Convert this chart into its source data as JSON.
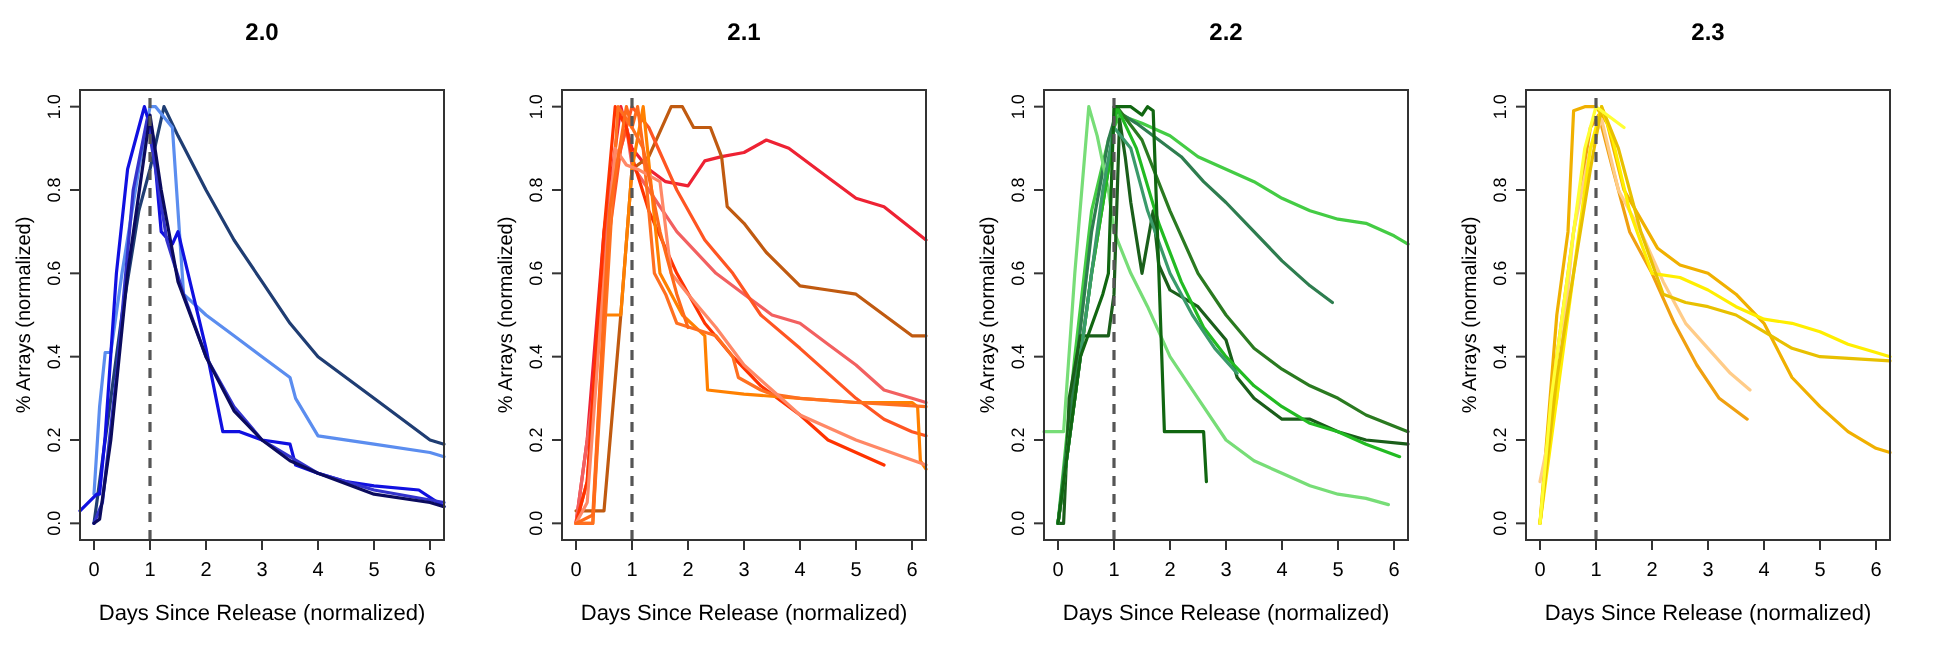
{
  "chart_data": [
    {
      "type": "line",
      "title": "2.0",
      "xlabel": "Days Since Release (normalized)",
      "ylabel": "% Arrays (normalized)",
      "xlim": [
        -0.25,
        6.25
      ],
      "ylim": [
        -0.04,
        1.04
      ],
      "xticks": [
        0,
        1,
        2,
        3,
        4,
        5,
        6
      ],
      "yticks": [
        {
          "value": 0,
          "label": "0.0"
        },
        {
          "value": 0.2,
          "label": "0.2"
        },
        {
          "value": 0.4,
          "label": "0.4"
        },
        {
          "value": 0.6,
          "label": "0.6"
        },
        {
          "value": 0.8,
          "label": "0.8"
        },
        {
          "value": 1,
          "label": "1.0"
        }
      ],
      "ref_lines": [
        {
          "axis": "x",
          "value": 1,
          "color": "#555555",
          "line_style": "dashed"
        }
      ],
      "series": [
        {
          "color": "#1f3d73",
          "x": [
            0,
            0.2,
            0.5,
            0.8,
            1.0,
            1.25,
            1.5,
            2,
            2.5,
            3,
            3.5,
            4,
            5,
            6,
            6.25
          ],
          "values": [
            0,
            0.2,
            0.5,
            0.75,
            0.85,
            1.0,
            0.93,
            0.8,
            0.68,
            0.58,
            0.48,
            0.4,
            0.3,
            0.2,
            0.19
          ]
        },
        {
          "color": "#5b8def",
          "x": [
            0,
            0.1,
            0.2,
            0.3,
            0.5,
            0.8,
            1.0,
            1.1,
            1.4,
            1.6,
            2,
            2.5,
            3,
            3.5,
            3.6,
            4,
            5,
            6,
            6.25
          ],
          "values": [
            0.07,
            0.28,
            0.41,
            0.41,
            0.6,
            0.85,
            1.0,
            1.0,
            0.95,
            0.55,
            0.5,
            0.45,
            0.4,
            0.35,
            0.3,
            0.21,
            0.19,
            0.17,
            0.16
          ]
        },
        {
          "color": "#1010e0",
          "x": [
            -0.25,
            0.05,
            0.1,
            0.2,
            0.4,
            0.6,
            0.8,
            0.9,
            1.05,
            1.2,
            1.4,
            1.5,
            2,
            2.3,
            2.6,
            3,
            3.5,
            3.6,
            4,
            4.5,
            5,
            5.8,
            6.25
          ],
          "values": [
            0.03,
            0.07,
            0.07,
            0.21,
            0.6,
            0.85,
            0.95,
            1.0,
            0.93,
            0.7,
            0.67,
            0.7,
            0.42,
            0.22,
            0.22,
            0.2,
            0.19,
            0.14,
            0.12,
            0.1,
            0.09,
            0.08,
            0.04
          ]
        },
        {
          "color": "#3333cc",
          "x": [
            0,
            0.15,
            0.4,
            0.7,
            0.95,
            1.1,
            1.3,
            1.6,
            2,
            2.5,
            3,
            4,
            5,
            6.25
          ],
          "values": [
            0,
            0.05,
            0.35,
            0.8,
            0.97,
            0.85,
            0.68,
            0.55,
            0.4,
            0.28,
            0.2,
            0.12,
            0.08,
            0.05
          ]
        },
        {
          "color": "#0b0b5e",
          "x": [
            0,
            0.1,
            0.3,
            0.6,
            1.0,
            1.2,
            1.5,
            2,
            2.5,
            3,
            3.5,
            4,
            5,
            6,
            6.25
          ],
          "values": [
            0,
            0.01,
            0.2,
            0.6,
            0.98,
            0.8,
            0.58,
            0.4,
            0.27,
            0.2,
            0.15,
            0.12,
            0.07,
            0.05,
            0.04
          ]
        }
      ]
    },
    {
      "type": "line",
      "title": "2.1",
      "xlabel": "Days Since Release (normalized)",
      "ylabel": "% Arrays (normalized)",
      "xlim": [
        -0.25,
        6.25
      ],
      "ylim": [
        -0.04,
        1.04
      ],
      "xticks": [
        0,
        1,
        2,
        3,
        4,
        5,
        6
      ],
      "yticks": [
        {
          "value": 0,
          "label": "0.0"
        },
        {
          "value": 0.2,
          "label": "0.2"
        },
        {
          "value": 0.4,
          "label": "0.4"
        },
        {
          "value": 0.6,
          "label": "0.6"
        },
        {
          "value": 0.8,
          "label": "0.8"
        },
        {
          "value": 1,
          "label": "1.0"
        }
      ],
      "ref_lines": [
        {
          "axis": "x",
          "value": 1,
          "color": "#555555",
          "line_style": "dashed"
        }
      ],
      "series": [
        {
          "color": "#ee2233",
          "x": [
            0,
            0.2,
            0.5,
            0.8,
            1.0,
            1.3,
            1.6,
            2.0,
            2.3,
            2.6,
            3,
            3.4,
            3.8,
            4.5,
            5,
            5.5,
            6.25
          ],
          "values": [
            0,
            0.2,
            0.7,
            1.0,
            0.9,
            0.85,
            0.82,
            0.81,
            0.87,
            0.88,
            0.89,
            0.92,
            0.9,
            0.83,
            0.78,
            0.76,
            0.68
          ]
        },
        {
          "color": "#c05a10",
          "x": [
            0,
            0.5,
            0.8,
            1.0,
            1.3,
            1.7,
            1.9,
            2.1,
            2.4,
            2.6,
            2.7,
            3.0,
            3.4,
            4,
            4.5,
            5,
            5.5,
            6,
            6.25
          ],
          "values": [
            0.03,
            0.03,
            0.5,
            0.85,
            0.88,
            1.0,
            1.0,
            0.95,
            0.95,
            0.88,
            0.76,
            0.72,
            0.65,
            0.57,
            0.56,
            0.55,
            0.5,
            0.45,
            0.45
          ]
        },
        {
          "color": "#f26060",
          "x": [
            0,
            0.3,
            0.6,
            0.9,
            1.0,
            1.3,
            1.8,
            2.5,
            3,
            3.5,
            4,
            4.5,
            5,
            5.5,
            6,
            6.25
          ],
          "values": [
            0,
            0.3,
            0.8,
            0.95,
            0.86,
            0.8,
            0.7,
            0.6,
            0.55,
            0.5,
            0.48,
            0.43,
            0.38,
            0.32,
            0.3,
            0.29
          ]
        },
        {
          "color": "#ff5522",
          "x": [
            0,
            0.2,
            0.5,
            0.8,
            1.0,
            1.3,
            1.8,
            2.3,
            2.8,
            3.3,
            4,
            4.5,
            5,
            5.5,
            6,
            6.25
          ],
          "values": [
            0,
            0.1,
            0.6,
            0.9,
            1.0,
            0.95,
            0.8,
            0.68,
            0.6,
            0.5,
            0.42,
            0.36,
            0.3,
            0.25,
            0.22,
            0.21
          ]
        },
        {
          "color": "#ff3300",
          "x": [
            0,
            0.2,
            0.5,
            0.7,
            0.9,
            1.0,
            1.3,
            1.8,
            2.3,
            2.8,
            3.3,
            4,
            4.5,
            5,
            5.5
          ],
          "values": [
            0,
            0.1,
            0.7,
            1.0,
            0.95,
            0.88,
            0.75,
            0.6,
            0.48,
            0.4,
            0.33,
            0.26,
            0.2,
            0.17,
            0.14
          ]
        },
        {
          "color": "#ff8000",
          "x": [
            0,
            0.3,
            0.5,
            0.8,
            1.0,
            1.2,
            1.5,
            1.9,
            2.3,
            2.35,
            3,
            4,
            5,
            6,
            6.1,
            6.15,
            6.25
          ],
          "values": [
            0,
            0,
            0.5,
            0.5,
            0.85,
            1.0,
            0.6,
            0.5,
            0.45,
            0.32,
            0.31,
            0.3,
            0.29,
            0.29,
            0.28,
            0.15,
            0.13
          ]
        },
        {
          "color": "#ff7020",
          "x": [
            0,
            0.3,
            0.55,
            0.75,
            1.0,
            1.2,
            1.4,
            1.6,
            1.8,
            2.5,
            2.8,
            2.9,
            3.3,
            3.5,
            4,
            5,
            6.25
          ],
          "values": [
            0,
            0,
            0.55,
            1.0,
            0.95,
            0.9,
            0.6,
            0.55,
            0.48,
            0.45,
            0.4,
            0.35,
            0.32,
            0.31,
            0.3,
            0.29,
            0.28
          ]
        },
        {
          "color": "#ff8866",
          "x": [
            0,
            0.2,
            0.45,
            0.7,
            0.9,
            1.1,
            1.5,
            1.7,
            2,
            2.5,
            3,
            3.5,
            4,
            5,
            6.25
          ],
          "values": [
            0,
            0.05,
            0.5,
            0.9,
            0.86,
            0.85,
            0.82,
            0.6,
            0.55,
            0.47,
            0.38,
            0.32,
            0.26,
            0.2,
            0.14
          ]
        },
        {
          "color": "#ff6a1a",
          "x": [
            0,
            0.3,
            0.6,
            0.9,
            1.0,
            1.1,
            1.2,
            1.5,
            1.8,
            2.0
          ],
          "values": [
            0,
            0.02,
            0.75,
            1.0,
            0.95,
            1.0,
            0.9,
            0.7,
            0.55,
            0.47
          ]
        }
      ]
    },
    {
      "type": "line",
      "title": "2.2",
      "xlabel": "Days Since Release (normalized)",
      "ylabel": "% Arrays (normalized)",
      "xlim": [
        -0.25,
        6.25
      ],
      "ylim": [
        -0.04,
        1.04
      ],
      "xticks": [
        0,
        1,
        2,
        3,
        4,
        5,
        6
      ],
      "yticks": [
        {
          "value": 0,
          "label": "0.0"
        },
        {
          "value": 0.2,
          "label": "0.2"
        },
        {
          "value": 0.4,
          "label": "0.4"
        },
        {
          "value": 0.6,
          "label": "0.6"
        },
        {
          "value": 0.8,
          "label": "0.8"
        },
        {
          "value": 1,
          "label": "1.0"
        }
      ],
      "ref_lines": [
        {
          "axis": "x",
          "value": 1,
          "color": "#555555",
          "line_style": "dashed"
        }
      ],
      "series": [
        {
          "color": "#44cc44",
          "x": [
            0,
            0.3,
            0.6,
            0.9,
            1.1,
            1.5,
            2,
            2.5,
            3,
            3.5,
            4,
            4.5,
            5,
            5.5,
            6,
            6.25
          ],
          "values": [
            0,
            0.4,
            0.75,
            0.92,
            0.98,
            0.96,
            0.93,
            0.88,
            0.85,
            0.82,
            0.78,
            0.75,
            0.73,
            0.72,
            0.69,
            0.67
          ]
        },
        {
          "color": "#2e7d4f",
          "x": [
            0,
            0.3,
            0.6,
            0.9,
            1.05,
            1.4,
            1.8,
            2.2,
            2.6,
            3,
            3.5,
            4,
            4.5,
            4.9
          ],
          "values": [
            0,
            0.35,
            0.7,
            0.92,
            0.99,
            0.96,
            0.92,
            0.88,
            0.82,
            0.77,
            0.7,
            0.63,
            0.57,
            0.53
          ]
        },
        {
          "color": "#77dd77",
          "x": [
            -0.25,
            0.1,
            0.3,
            0.55,
            0.7,
            0.9,
            1.0,
            1.3,
            1.6,
            2,
            2.5,
            3,
            3.5,
            4,
            4.5,
            5,
            5.5,
            5.9
          ],
          "values": [
            0.22,
            0.22,
            0.6,
            1.0,
            0.93,
            0.8,
            0.7,
            0.6,
            0.52,
            0.4,
            0.3,
            0.2,
            0.15,
            0.12,
            0.09,
            0.07,
            0.06,
            0.045
          ]
        },
        {
          "color": "#1a5e1a",
          "x": [
            0,
            0.1,
            0.2,
            0.4,
            0.9,
            1.0,
            1.1,
            1.2,
            1.3,
            1.5,
            1.7,
            1.8,
            2.0,
            2.5,
            3.0,
            3.2,
            3.5,
            4.0,
            4.5,
            5,
            5.5,
            6.25
          ],
          "values": [
            0,
            0,
            0.3,
            0.45,
            0.45,
            0.55,
            0.97,
            0.88,
            0.77,
            0.6,
            0.75,
            0.62,
            0.56,
            0.52,
            0.44,
            0.35,
            0.3,
            0.25,
            0.25,
            0.22,
            0.2,
            0.19
          ]
        },
        {
          "color": "#2a7a20",
          "x": [
            0,
            0.3,
            0.6,
            0.9,
            1.05,
            1.5,
            2,
            2.5,
            3,
            3.5,
            4,
            4.5,
            5,
            5.5,
            6.25
          ],
          "values": [
            0,
            0.3,
            0.6,
            0.85,
            1.0,
            0.92,
            0.75,
            0.6,
            0.5,
            0.42,
            0.37,
            0.33,
            0.3,
            0.26,
            0.22
          ]
        },
        {
          "color": "#22bb22",
          "x": [
            0,
            0.3,
            0.6,
            0.9,
            1.05,
            1.4,
            1.8,
            2.2,
            2.6,
            3,
            3.5,
            4,
            4.5,
            5,
            5.5,
            6.1
          ],
          "values": [
            0,
            0.3,
            0.6,
            0.85,
            1.0,
            0.9,
            0.72,
            0.58,
            0.47,
            0.4,
            0.33,
            0.28,
            0.24,
            0.22,
            0.19,
            0.16
          ]
        },
        {
          "color": "#3a9a6a",
          "x": [
            0,
            0.4,
            0.8,
            1.0,
            1.3,
            1.6,
            2,
            2.4,
            2.8,
            3.2
          ],
          "values": [
            0,
            0.4,
            0.8,
            0.95,
            0.9,
            0.75,
            0.6,
            0.5,
            0.42,
            0.36
          ]
        },
        {
          "color": "#116611",
          "x": [
            0,
            0.4,
            0.8,
            0.9,
            1.0,
            1.3,
            1.5,
            1.6,
            1.7,
            1.9,
            2.6,
            2.65
          ],
          "values": [
            0,
            0.4,
            0.55,
            0.6,
            1.0,
            1.0,
            0.98,
            1.0,
            0.99,
            0.22,
            0.22,
            0.1
          ]
        }
      ]
    },
    {
      "type": "line",
      "title": "2.3",
      "xlabel": "Days Since Release (normalized)",
      "ylabel": "% Arrays (normalized)",
      "xlim": [
        -0.25,
        6.25
      ],
      "ylim": [
        -0.04,
        1.04
      ],
      "xticks": [
        0,
        1,
        2,
        3,
        4,
        5,
        6
      ],
      "yticks": [
        {
          "value": 0,
          "label": "0.0"
        },
        {
          "value": 0.2,
          "label": "0.2"
        },
        {
          "value": 0.4,
          "label": "0.4"
        },
        {
          "value": 0.6,
          "label": "0.6"
        },
        {
          "value": 0.8,
          "label": "0.8"
        },
        {
          "value": 1,
          "label": "1.0"
        }
      ],
      "ref_lines": [
        {
          "axis": "x",
          "value": 1,
          "color": "#555555",
          "line_style": "dashed"
        }
      ],
      "series": [
        {
          "color": "#f0b000",
          "x": [
            0,
            0.3,
            0.5,
            0.6,
            0.8,
            1.0,
            1.2,
            1.5,
            1.8,
            2.1,
            2.5,
            3,
            3.5,
            4,
            4.5,
            5,
            5.5,
            6,
            6.25
          ],
          "values": [
            0,
            0.5,
            0.7,
            0.99,
            1.0,
            1.0,
            0.96,
            0.8,
            0.73,
            0.66,
            0.62,
            0.6,
            0.55,
            0.48,
            0.35,
            0.28,
            0.22,
            0.18,
            0.17
          ]
        },
        {
          "color": "#f0a010",
          "x": [
            0,
            0.3,
            0.6,
            0.9,
            1.05,
            1.3,
            1.6,
            2.0,
            2.4,
            2.8,
            3.2,
            3.7
          ],
          "values": [
            0,
            0.4,
            0.7,
            0.95,
            0.98,
            0.85,
            0.7,
            0.6,
            0.48,
            0.38,
            0.3,
            0.25
          ]
        },
        {
          "color": "#ffcc88",
          "x": [
            0,
            0.3,
            0.6,
            0.9,
            1.1,
            1.4,
            1.8,
            2.2,
            2.6,
            3,
            3.4,
            3.75
          ],
          "values": [
            0.1,
            0.3,
            0.7,
            0.9,
            0.97,
            0.8,
            0.7,
            0.58,
            0.48,
            0.42,
            0.36,
            0.32
          ]
        },
        {
          "color": "#ffee00",
          "x": [
            0,
            0.3,
            0.6,
            0.9,
            1.1,
            1.3,
            1.6,
            2,
            2.5,
            3,
            3.5,
            4,
            4.5,
            5,
            5.5,
            6,
            6.25
          ],
          "values": [
            0,
            0.3,
            0.6,
            0.9,
            1.0,
            0.92,
            0.75,
            0.6,
            0.59,
            0.56,
            0.52,
            0.49,
            0.48,
            0.46,
            0.43,
            0.41,
            0.4
          ]
        },
        {
          "color": "#e8c000",
          "x": [
            0,
            0.3,
            0.6,
            0.9,
            1.1,
            1.4,
            1.8,
            2.2,
            2.6,
            3,
            3.5,
            4,
            4.5,
            5,
            6.25
          ],
          "values": [
            0,
            0.35,
            0.6,
            0.85,
            1.0,
            0.9,
            0.7,
            0.55,
            0.53,
            0.52,
            0.5,
            0.46,
            0.42,
            0.4,
            0.39
          ]
        },
        {
          "color": "#ffff33",
          "x": [
            0,
            0.2,
            0.5,
            0.8,
            1.0,
            1.2,
            1.5
          ],
          "values": [
            0,
            0.3,
            0.6,
            0.9,
            1.0,
            0.98,
            0.95
          ]
        }
      ]
    }
  ]
}
